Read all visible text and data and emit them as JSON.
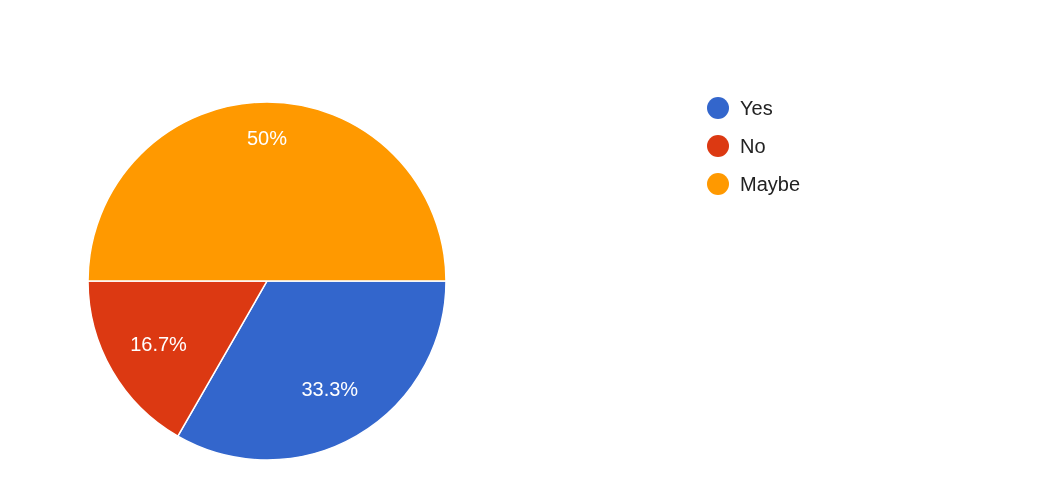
{
  "chart_data": {
    "type": "pie",
    "categories": [
      "Yes",
      "No",
      "Maybe"
    ],
    "values": [
      33.3,
      16.7,
      50
    ],
    "colors": [
      "#3366cc",
      "#dc3912",
      "#ff9900"
    ],
    "value_labels": [
      "33.3%",
      "16.7%",
      "50%"
    ],
    "legend": "top right"
  }
}
